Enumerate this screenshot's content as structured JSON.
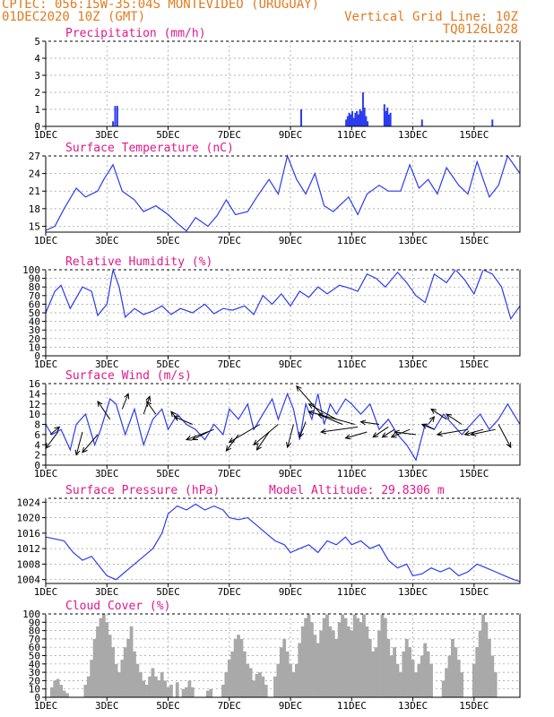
{
  "header": {
    "line1": "CPTEC:  056:15W-35:04S  MONTEVIDEO (URUGUAY)",
    "line2_left": "01DEC2020 10Z (GMT)",
    "line2_right": "Vertical Grid Line: 10Z",
    "line3_right": "TQ0126L028"
  },
  "colors": {
    "header": "#e07b1f",
    "title": "#e0188c",
    "line": "#2b3cf0",
    "bar": "#2b3cf0",
    "cloud": "#a9a9a9",
    "grid": "#9a9a9a"
  },
  "chart_data": [
    {
      "type": "bar",
      "title": "Precipitation (mm/h)",
      "ylim": [
        0,
        5
      ],
      "yticks": [
        0,
        1,
        2,
        3,
        4,
        5
      ],
      "xlim": [
        1,
        16.5
      ],
      "xticks": [
        "1DEC",
        "3DEC",
        "5DEC",
        "7DEC",
        "9DEC",
        "11DEC",
        "13DEC",
        "15DEC"
      ],
      "grid": true,
      "x": [
        3.2,
        3.27,
        3.34,
        9.35,
        10.82,
        10.87,
        10.92,
        10.97,
        11.02,
        11.07,
        11.12,
        11.17,
        11.22,
        11.27,
        11.32,
        11.37,
        11.42,
        11.47,
        11.52,
        12.07,
        12.12,
        12.17,
        12.22,
        12.27,
        13.3,
        15.6
      ],
      "values": [
        0.3,
        1.2,
        1.2,
        1.0,
        0.4,
        0.6,
        0.8,
        0.7,
        0.9,
        0.5,
        0.8,
        0.9,
        0.7,
        1.0,
        0.9,
        2.0,
        1.1,
        0.6,
        0.3,
        1.3,
        0.9,
        1.1,
        0.7,
        0.8,
        0.4,
        0.4
      ]
    },
    {
      "type": "line",
      "title": "Surface Temperature (nC)",
      "ylim": [
        14,
        27
      ],
      "yticks": [
        15,
        18,
        21,
        24,
        27
      ],
      "xlim": [
        1,
        16.5
      ],
      "xticks": [
        "1DEC",
        "3DEC",
        "5DEC",
        "7DEC",
        "9DEC",
        "11DEC",
        "13DEC",
        "15DEC"
      ],
      "grid": true,
      "x": [
        1.0,
        1.3,
        1.6,
        2.0,
        2.3,
        2.7,
        2.9,
        3.2,
        3.5,
        3.9,
        4.2,
        4.6,
        5.0,
        5.3,
        5.6,
        5.9,
        6.3,
        6.6,
        6.9,
        7.2,
        7.6,
        7.9,
        8.3,
        8.6,
        8.9,
        9.2,
        9.5,
        9.8,
        10.1,
        10.4,
        10.6,
        10.9,
        11.2,
        11.5,
        11.9,
        12.2,
        12.6,
        12.9,
        13.2,
        13.5,
        13.8,
        14.1,
        14.5,
        14.8,
        15.1,
        15.5,
        15.8,
        16.1,
        16.5
      ],
      "values": [
        14.3,
        15.0,
        18.0,
        21.5,
        20.0,
        21.0,
        23.0,
        25.5,
        21.0,
        19.5,
        17.5,
        18.5,
        17.0,
        15.5,
        14.2,
        16.5,
        15.0,
        16.8,
        19.5,
        17.0,
        17.5,
        20.0,
        23.0,
        20.5,
        27.0,
        23.0,
        20.5,
        24.0,
        18.5,
        17.5,
        18.5,
        20.0,
        17.0,
        20.5,
        22.0,
        21.0,
        21.0,
        25.5,
        21.5,
        23.0,
        20.5,
        25.0,
        22.0,
        20.5,
        26.0,
        20.0,
        22.0,
        27.0,
        24.0
      ]
    },
    {
      "type": "line",
      "title": "Relative Humidity (%)",
      "ylim": [
        0,
        100
      ],
      "yticks": [
        0,
        10,
        20,
        30,
        40,
        50,
        60,
        70,
        80,
        90,
        100
      ],
      "xlim": [
        1,
        16.5
      ],
      "xticks": [
        "1DEC",
        "3DEC",
        "5DEC",
        "7DEC",
        "9DEC",
        "11DEC",
        "13DEC",
        "15DEC"
      ],
      "grid": true,
      "x": [
        1.0,
        1.3,
        1.5,
        1.8,
        2.2,
        2.5,
        2.7,
        3.0,
        3.2,
        3.4,
        3.6,
        3.9,
        4.2,
        4.5,
        4.8,
        5.1,
        5.4,
        5.8,
        6.2,
        6.5,
        6.8,
        7.1,
        7.5,
        7.8,
        8.1,
        8.4,
        8.7,
        9.0,
        9.3,
        9.6,
        9.9,
        10.2,
        10.6,
        10.9,
        11.2,
        11.5,
        11.8,
        12.1,
        12.5,
        12.8,
        13.1,
        13.4,
        13.7,
        14.1,
        14.4,
        14.7,
        15.0,
        15.3,
        15.6,
        15.9,
        16.2,
        16.5
      ],
      "values": [
        50,
        75,
        82,
        55,
        80,
        75,
        47,
        60,
        100,
        80,
        45,
        55,
        48,
        52,
        58,
        48,
        55,
        50,
        60,
        49,
        55,
        53,
        58,
        48,
        70,
        60,
        72,
        58,
        75,
        68,
        80,
        72,
        82,
        79,
        75,
        95,
        90,
        80,
        97,
        85,
        70,
        62,
        95,
        85,
        100,
        88,
        72,
        100,
        95,
        80,
        43,
        58
      ]
    },
    {
      "type": "line",
      "title": "Surface Wind (m/s)",
      "ylim": [
        0,
        16
      ],
      "yticks": [
        0,
        2,
        4,
        6,
        8,
        10,
        12,
        14,
        16
      ],
      "xlim": [
        1,
        16.5
      ],
      "xticks": [
        "1DEC",
        "3DEC",
        "5DEC",
        "7DEC",
        "9DEC",
        "11DEC",
        "13DEC",
        "15DEC"
      ],
      "grid": true,
      "x": [
        1.0,
        1.2,
        1.5,
        1.8,
        2.0,
        2.3,
        2.6,
        2.8,
        3.1,
        3.3,
        3.6,
        3.9,
        4.2,
        4.5,
        4.8,
        5.0,
        5.3,
        5.6,
        5.9,
        6.2,
        6.5,
        6.8,
        7.0,
        7.3,
        7.6,
        7.8,
        8.1,
        8.4,
        8.6,
        8.9,
        9.1,
        9.3,
        9.5,
        9.7,
        9.9,
        10.1,
        10.3,
        10.5,
        10.8,
        11.0,
        11.3,
        11.6,
        11.9,
        12.2,
        12.5,
        12.8,
        13.1,
        13.4,
        13.7,
        14.0,
        14.3,
        14.6,
        14.9,
        15.2,
        15.5,
        15.8,
        16.1,
        16.5
      ],
      "values": [
        8,
        6,
        7,
        3,
        8,
        10,
        4,
        7,
        13,
        12,
        6,
        11,
        4,
        9,
        11,
        7,
        10,
        8,
        7,
        5,
        8,
        6,
        11,
        9,
        12,
        7,
        10,
        13,
        9,
        14,
        11,
        5,
        12,
        9,
        14,
        8,
        12,
        10,
        13,
        12,
        10,
        12,
        7,
        9,
        6,
        4,
        1,
        8,
        7,
        10,
        8,
        6,
        8,
        10,
        7,
        9,
        12,
        8
      ],
      "arrows": [
        {
          "x": 1.15,
          "y": 6.0,
          "dx": 0.3,
          "dy": 1.5
        },
        {
          "x": 1.4,
          "y": 6.5,
          "dx": -0.4,
          "dy": -3.2
        },
        {
          "x": 2.2,
          "y": 6.5,
          "dx": -0.2,
          "dy": -4.5
        },
        {
          "x": 2.7,
          "y": 6.0,
          "dx": -0.5,
          "dy": -3.5
        },
        {
          "x": 3.1,
          "y": 9.0,
          "dx": -0.4,
          "dy": 3.5
        },
        {
          "x": 3.5,
          "y": 11.0,
          "dx": 0.2,
          "dy": 3.0
        },
        {
          "x": 4.2,
          "y": 10.0,
          "dx": 0.2,
          "dy": 3.5
        },
        {
          "x": 4.6,
          "y": 10.0,
          "dx": -0.3,
          "dy": 2.5
        },
        {
          "x": 5.3,
          "y": 9.0,
          "dx": -0.2,
          "dy": 1.5
        },
        {
          "x": 5.8,
          "y": 8.0,
          "dx": -0.6,
          "dy": 1.5
        },
        {
          "x": 6.3,
          "y": 6.5,
          "dx": -0.5,
          "dy": -1.5
        },
        {
          "x": 6.5,
          "y": 7.0,
          "dx": -0.9,
          "dy": -2.0
        },
        {
          "x": 7.3,
          "y": 6.0,
          "dx": -0.4,
          "dy": -3.2
        },
        {
          "x": 8.0,
          "y": 8.0,
          "dx": -1.0,
          "dy": -3.5
        },
        {
          "x": 8.3,
          "y": 6.5,
          "dx": -0.4,
          "dy": -3.5
        },
        {
          "x": 8.6,
          "y": 8.0,
          "dx": -0.8,
          "dy": -4.0
        },
        {
          "x": 9.1,
          "y": 8.0,
          "dx": -0.2,
          "dy": -4.5
        },
        {
          "x": 9.5,
          "y": 8.5,
          "dx": -0.2,
          "dy": -3.0
        },
        {
          "x": 10.0,
          "y": 10.0,
          "dx": -0.8,
          "dy": 5.5
        },
        {
          "x": 10.5,
          "y": 9.0,
          "dx": -0.9,
          "dy": 3.0
        },
        {
          "x": 10.7,
          "y": 8.0,
          "dx": -0.8,
          "dy": 2.0
        },
        {
          "x": 11.1,
          "y": 8.0,
          "dx": -1.5,
          "dy": 2.5
        },
        {
          "x": 11.2,
          "y": 7.5,
          "dx": -1.2,
          "dy": -1.0
        },
        {
          "x": 11.5,
          "y": 6.5,
          "dx": -0.7,
          "dy": -1.2
        },
        {
          "x": 11.9,
          "y": 8.0,
          "dx": -0.6,
          "dy": 0.5
        },
        {
          "x": 12.2,
          "y": 7.5,
          "dx": -0.5,
          "dy": -2.0
        },
        {
          "x": 12.4,
          "y": 7.0,
          "dx": -0.4,
          "dy": -1.5
        },
        {
          "x": 12.9,
          "y": 7.0,
          "dx": -0.6,
          "dy": -1.5
        },
        {
          "x": 13.1,
          "y": 6.0,
          "dx": -0.7,
          "dy": 0.5
        },
        {
          "x": 13.5,
          "y": 8.0,
          "dx": 0.2,
          "dy": 1.5
        },
        {
          "x": 13.7,
          "y": 7.0,
          "dx": -0.4,
          "dy": 1.0
        },
        {
          "x": 14.1,
          "y": 9.0,
          "dx": -0.5,
          "dy": 2.0
        },
        {
          "x": 14.6,
          "y": 8.0,
          "dx": -0.5,
          "dy": 2.0
        },
        {
          "x": 14.8,
          "y": 7.0,
          "dx": -1.0,
          "dy": -1.0
        },
        {
          "x": 15.3,
          "y": 7.0,
          "dx": -0.6,
          "dy": -1.0
        },
        {
          "x": 15.7,
          "y": 7.0,
          "dx": -0.8,
          "dy": -1.0
        },
        {
          "x": 15.8,
          "y": 8.0,
          "dx": 0.4,
          "dy": -4.5
        }
      ]
    },
    {
      "type": "line",
      "title": "Surface Pressure (hPa)",
      "annotation": "Model Altitude: 29.8306 m",
      "ylim": [
        1003,
        1025
      ],
      "yticks": [
        1004,
        1008,
        1012,
        1016,
        1020,
        1024
      ],
      "xlim": [
        1,
        16.5
      ],
      "xticks": [
        "1DEC",
        "3DEC",
        "5DEC",
        "7DEC",
        "9DEC",
        "11DEC",
        "13DEC",
        "15DEC"
      ],
      "grid": true,
      "x": [
        1.0,
        1.3,
        1.6,
        1.9,
        2.2,
        2.5,
        2.8,
        3.0,
        3.3,
        3.6,
        3.9,
        4.2,
        4.5,
        4.8,
        5.0,
        5.3,
        5.6,
        5.9,
        6.2,
        6.5,
        6.8,
        7.0,
        7.3,
        7.6,
        7.9,
        8.2,
        8.5,
        8.8,
        9.0,
        9.3,
        9.6,
        9.9,
        10.2,
        10.5,
        10.8,
        11.0,
        11.3,
        11.6,
        11.9,
        12.2,
        12.5,
        12.8,
        13.0,
        13.3,
        13.6,
        13.9,
        14.2,
        14.5,
        14.8,
        15.1,
        15.4,
        15.7,
        16.0,
        16.3,
        16.5
      ],
      "values": [
        1015,
        1014.5,
        1014,
        1011,
        1009,
        1010,
        1007,
        1005,
        1004,
        1006,
        1008,
        1010,
        1012,
        1016,
        1021,
        1023,
        1022,
        1023.5,
        1022,
        1023,
        1022,
        1020,
        1019.5,
        1020,
        1018,
        1016,
        1014,
        1013,
        1011,
        1012,
        1013,
        1011,
        1014,
        1013,
        1015,
        1013,
        1014,
        1012,
        1013,
        1009,
        1007,
        1008,
        1005,
        1005.5,
        1007,
        1006,
        1007,
        1005,
        1006,
        1008,
        1007,
        1006,
        1005,
        1004,
        1003.5
      ]
    },
    {
      "type": "bar",
      "title": "Cloud Cover (%)",
      "ylim": [
        0,
        100
      ],
      "yticks": [
        0,
        10,
        20,
        30,
        40,
        50,
        60,
        70,
        80,
        90,
        100
      ],
      "xlim": [
        1,
        16.5
      ],
      "xticks": [
        "1DEC",
        "3DEC",
        "5DEC",
        "7DEC",
        "9DEC",
        "11DEC",
        "13DEC",
        "15DEC"
      ],
      "grid": true,
      "x": [
        1.2,
        1.3,
        1.4,
        1.5,
        1.6,
        1.7,
        2.3,
        2.4,
        2.5,
        2.6,
        2.7,
        2.8,
        2.9,
        3.0,
        3.1,
        3.2,
        3.3,
        3.4,
        3.5,
        3.6,
        3.7,
        3.8,
        3.9,
        4.0,
        4.1,
        4.2,
        4.3,
        4.4,
        4.5,
        4.6,
        4.7,
        4.8,
        4.9,
        5.0,
        5.1,
        5.3,
        5.5,
        5.6,
        5.7,
        5.8,
        6.3,
        6.4,
        6.8,
        6.9,
        7.0,
        7.1,
        7.2,
        7.3,
        7.4,
        7.5,
        7.6,
        7.7,
        7.8,
        7.9,
        8.0,
        8.1,
        8.2,
        8.5,
        8.6,
        8.7,
        8.8,
        8.9,
        9.0,
        9.1,
        9.2,
        9.3,
        9.4,
        9.5,
        9.6,
        9.7,
        9.8,
        9.9,
        10.0,
        10.1,
        10.2,
        10.3,
        10.4,
        10.5,
        10.6,
        10.7,
        10.8,
        10.9,
        11.0,
        11.1,
        11.2,
        11.3,
        11.4,
        11.5,
        11.6,
        11.7,
        11.8,
        11.9,
        12.0,
        12.1,
        12.2,
        12.3,
        12.4,
        12.5,
        12.6,
        12.7,
        12.8,
        12.9,
        13.0,
        13.1,
        13.2,
        13.3,
        13.4,
        13.5,
        13.6,
        14.0,
        14.1,
        14.2,
        14.3,
        14.4,
        14.5,
        14.6,
        15.0,
        15.1,
        15.2,
        15.3,
        15.4,
        15.5,
        15.6,
        15.7
      ],
      "values": [
        12,
        20,
        22,
        15,
        8,
        5,
        15,
        25,
        45,
        70,
        85,
        95,
        100,
        90,
        75,
        60,
        40,
        30,
        45,
        60,
        70,
        85,
        55,
        40,
        30,
        20,
        15,
        25,
        35,
        25,
        20,
        30,
        20,
        12,
        15,
        18,
        10,
        12,
        20,
        12,
        8,
        10,
        15,
        30,
        45,
        55,
        70,
        75,
        70,
        55,
        40,
        35,
        20,
        28,
        30,
        25,
        15,
        25,
        40,
        60,
        70,
        55,
        40,
        30,
        40,
        65,
        85,
        95,
        100,
        90,
        75,
        65,
        80,
        95,
        100,
        85,
        80,
        70,
        90,
        100,
        95,
        85,
        80,
        100,
        95,
        90,
        100,
        85,
        70,
        55,
        60,
        80,
        100,
        95,
        70,
        50,
        60,
        40,
        30,
        55,
        70,
        60,
        45,
        30,
        40,
        50,
        65,
        55,
        40,
        20,
        35,
        50,
        70,
        60,
        45,
        30,
        40,
        60,
        80,
        100,
        90,
        70,
        50,
        30
      ]
    }
  ]
}
